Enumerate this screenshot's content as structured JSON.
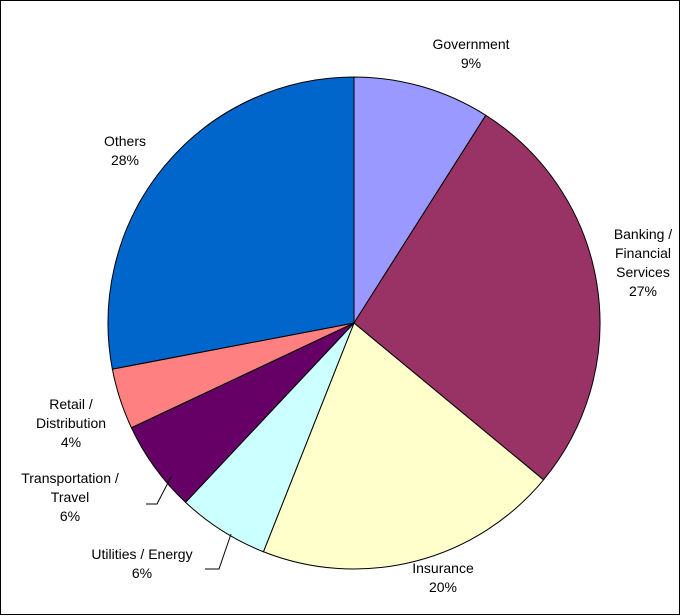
{
  "chart_data": {
    "type": "pie",
    "title": "",
    "start_angle_deg": 0,
    "direction": "clockwise",
    "slices": [
      {
        "name": "Government",
        "label_lines": [
          "Government",
          "9%"
        ],
        "value": 9,
        "color": "#9999ff"
      },
      {
        "name": "Banking / Financial Services",
        "label_lines": [
          "Banking /",
          "Financial",
          "Services",
          "27%"
        ],
        "value": 27,
        "color": "#993366"
      },
      {
        "name": "Insurance",
        "label_lines": [
          "Insurance",
          "20%"
        ],
        "value": 20,
        "color": "#ffffcc"
      },
      {
        "name": "Utilities / Energy",
        "label_lines": [
          "Utilities / Energy",
          "6%"
        ],
        "value": 6,
        "color": "#ccffff"
      },
      {
        "name": "Transportation / Travel",
        "label_lines": [
          "Transportation /",
          "Travel",
          "6%"
        ],
        "value": 6,
        "color": "#660066"
      },
      {
        "name": "Retail / Distribution",
        "label_lines": [
          "Retail /",
          "Distribution",
          "4%"
        ],
        "value": 4,
        "color": "#ff8080"
      },
      {
        "name": "Others",
        "label_lines": [
          "Others",
          "28%"
        ],
        "value": 28,
        "color": "#0066cc"
      }
    ]
  }
}
